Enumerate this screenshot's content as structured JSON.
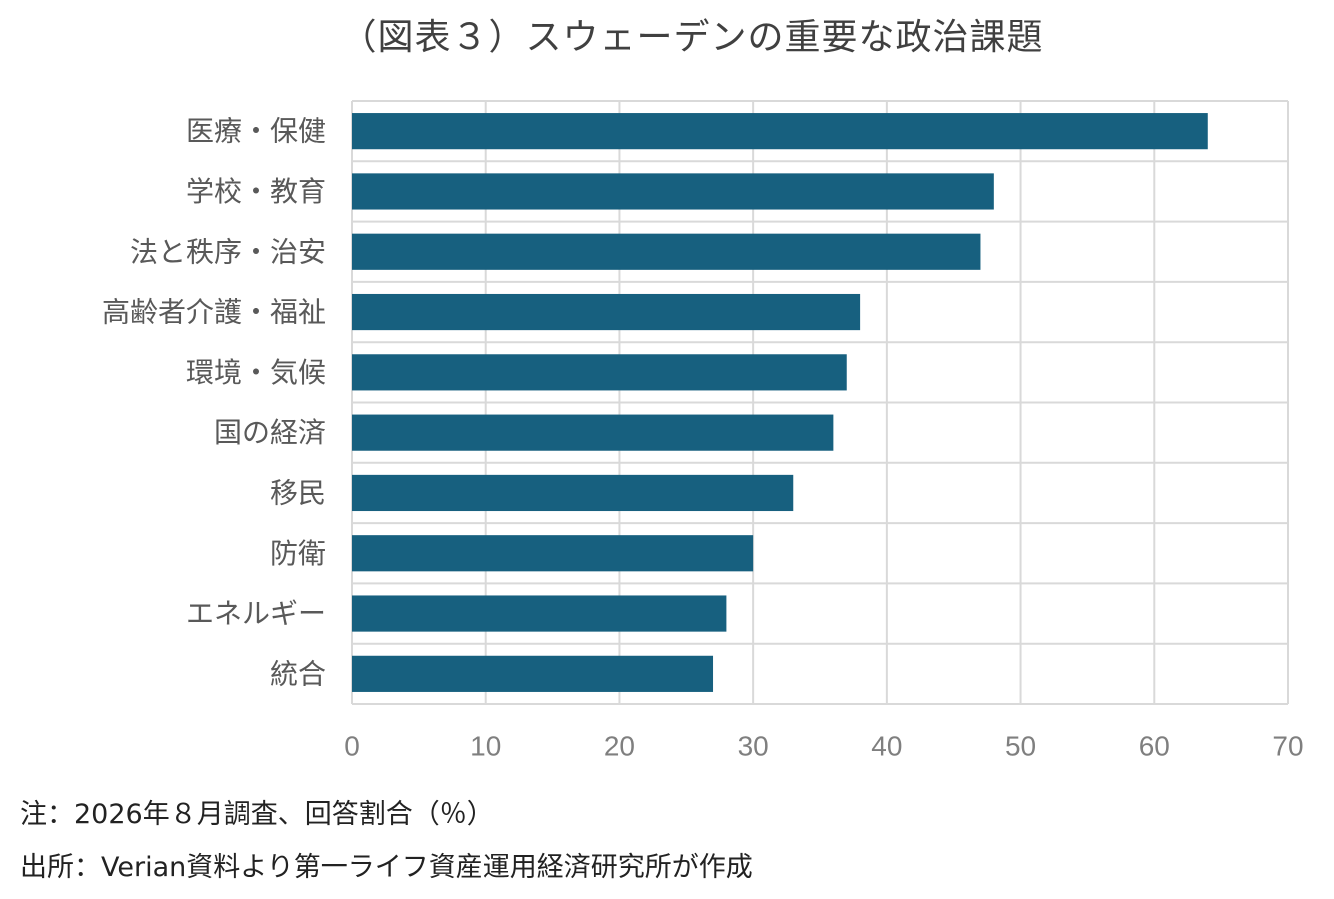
{
  "chart_data": {
    "type": "bar",
    "orientation": "horizontal",
    "title": "（図表３）スウェーデンの重要な政治課題",
    "categories": [
      "医療・保健",
      "学校・教育",
      "法と秩序・治安",
      "高齢者介護・福祉",
      "環境・気候",
      "国の経済",
      "移民",
      "防衛",
      "エネルギー",
      "統合"
    ],
    "values": [
      64,
      48,
      47,
      38,
      37,
      36,
      33,
      30,
      28,
      27
    ],
    "xlim": [
      0,
      70
    ],
    "xticks": [
      0,
      10,
      20,
      30,
      40,
      50,
      60,
      70
    ],
    "xlabel": "",
    "ylabel": "",
    "grid": true,
    "bar_color": "#17607f",
    "grid_color": "#d9d9d9"
  },
  "notes": {
    "note": "注：2026年８月調査、回答割合（％）",
    "source": "出所：Verian資料より第一ライフ資産運用経済研究所が作成"
  }
}
